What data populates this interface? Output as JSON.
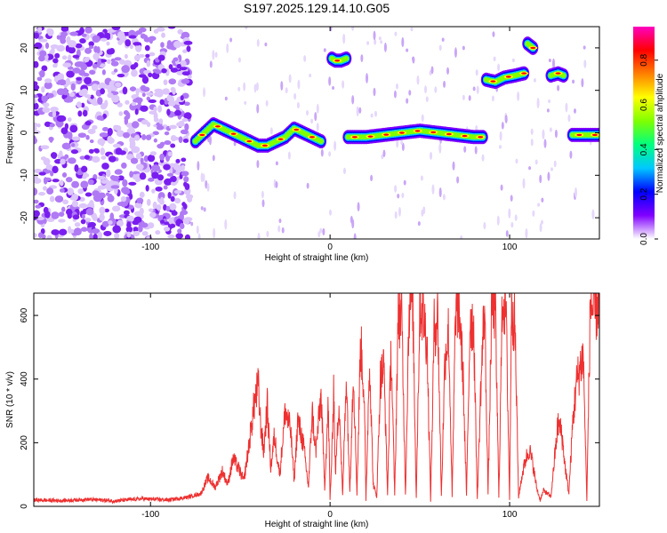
{
  "title": "S197.2025.129.14.10.G05",
  "chart_data": [
    {
      "type": "heatmap",
      "xlabel": "Height of straight line (km)",
      "ylabel": "Frequency (Hz)",
      "xlim": [
        -165,
        150
      ],
      "ylim": [
        -25,
        25
      ],
      "xticks": [
        -100,
        0,
        100
      ],
      "yticks": [
        -20,
        -10,
        0,
        10,
        20
      ],
      "colorbar": {
        "label": "Normalized spectral amplitude",
        "range": [
          0,
          0.95
        ],
        "ticks": [
          0.0,
          0.2,
          0.4,
          0.6,
          0.8
        ],
        "tick_labels": [
          "0.0",
          "0.2",
          "0.4",
          "0.6",
          "0.8"
        ],
        "colormap": [
          "#ffffff",
          "#8000ff",
          "#0000ff",
          "#00c8ff",
          "#00ff80",
          "#80ff00",
          "#ffff00",
          "#ff8000",
          "#ff0000",
          "#ff00c0"
        ]
      },
      "ridges": [
        {
          "x": [
            -75,
            -70,
            -65,
            -60,
            -55,
            -50,
            -45,
            -40,
            -35,
            -30,
            -25,
            -20,
            -15,
            -10,
            -5
          ],
          "y": [
            -2,
            0,
            2,
            1,
            0,
            -1,
            -2,
            -3,
            -3,
            -2,
            -1,
            1,
            0,
            -1,
            -2
          ]
        },
        {
          "x": [
            10,
            20,
            30,
            40,
            50,
            60,
            70,
            80,
            85
          ],
          "y": [
            -1,
            -1,
            -0.5,
            0,
            0.5,
            0,
            -0.5,
            -1,
            -1
          ]
        },
        {
          "x": [
            1,
            3,
            6,
            9
          ],
          "y": [
            17.5,
            17,
            17,
            17.5
          ]
        },
        {
          "x": [
            87,
            92,
            97,
            103,
            108
          ],
          "y": [
            12.5,
            12,
            13,
            13.5,
            14
          ]
        },
        {
          "x": [
            110,
            113
          ],
          "y": [
            21,
            20
          ]
        },
        {
          "x": [
            123,
            127,
            130
          ],
          "y": [
            13.5,
            14,
            13.5
          ]
        },
        {
          "x": [
            135,
            140,
            145,
            150
          ],
          "y": [
            -0.5,
            -0.5,
            -0.5,
            -0.5
          ]
        }
      ]
    },
    {
      "type": "line",
      "xlabel": "Height of straight line (km)",
      "ylabel": "SNR (10 * v/v)",
      "xlim": [
        -165,
        150
      ],
      "ylim": [
        0,
        670
      ],
      "xticks": [
        -100,
        0,
        100
      ],
      "yticks": [
        0,
        200,
        400,
        600
      ],
      "color": "#ee3030",
      "series": [
        {
          "x": [
            -165,
            -150,
            -135,
            -120,
            -105,
            -90,
            -80,
            -72,
            -68,
            -64,
            -60,
            -57,
            -54,
            -51,
            -48,
            -45,
            -42,
            -40,
            -39,
            -37,
            -35,
            -33,
            -31,
            -28,
            -25,
            -22,
            -20,
            -18,
            -15,
            -12,
            -10,
            -8,
            -5,
            -3,
            -1,
            0,
            1,
            2,
            3,
            5,
            7,
            9,
            11,
            13,
            15,
            17,
            19,
            20,
            22,
            24,
            26,
            28,
            30,
            32,
            34,
            36,
            38,
            40,
            42,
            44,
            46,
            48,
            50,
            52,
            54,
            56,
            58,
            60,
            62,
            64,
            66,
            68,
            70,
            72,
            74,
            76,
            78,
            80,
            82,
            84,
            86,
            88,
            90,
            92,
            94,
            96,
            98,
            100,
            101,
            103,
            105,
            107,
            109,
            111,
            113,
            115,
            117,
            119,
            121,
            123,
            125,
            127,
            129,
            131,
            133,
            135,
            137,
            139,
            141,
            143,
            145,
            147,
            150
          ],
          "y": [
            20,
            18,
            22,
            17,
            24,
            20,
            28,
            40,
            90,
            60,
            110,
            70,
            150,
            120,
            80,
            200,
            330,
            380,
            280,
            170,
            320,
            120,
            220,
            100,
            300,
            240,
            80,
            270,
            200,
            60,
            300,
            170,
            350,
            60,
            320,
            20,
            160,
            380,
            100,
            340,
            30,
            420,
            50,
            430,
            40,
            520,
            350,
            20,
            470,
            70,
            30,
            400,
            440,
            40,
            500,
            30,
            620,
            580,
            40,
            630,
            660,
            30,
            640,
            600,
            520,
            20,
            560,
            600,
            30,
            470,
            550,
            30,
            640,
            620,
            420,
            30,
            600,
            560,
            20,
            380,
            640,
            40,
            620,
            630,
            30,
            660,
            620,
            20,
            640,
            560,
            30,
            100,
            150,
            180,
            130,
            60,
            20,
            50,
            40,
            30,
            150,
            260,
            230,
            120,
            40,
            250,
            380,
            430,
            480,
            20,
            650,
            600,
            660
          ]
        }
      ]
    }
  ]
}
